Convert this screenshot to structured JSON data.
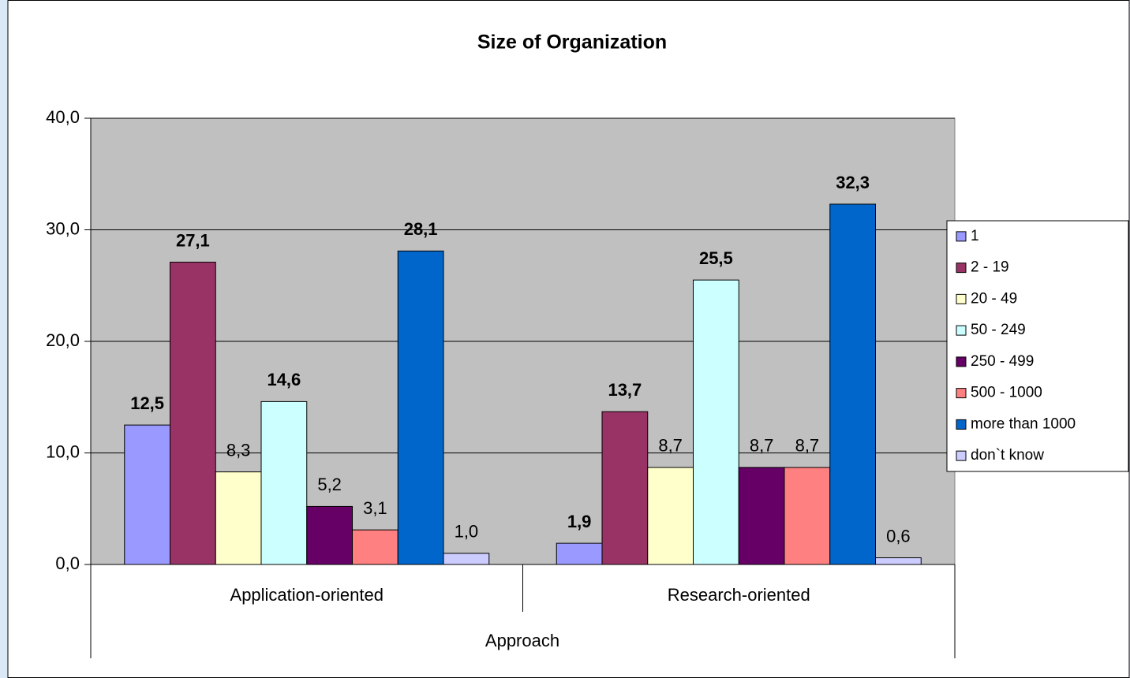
{
  "chart_data": {
    "type": "bar",
    "title": "Size of Organization",
    "x_label": "Approach",
    "categories": [
      "Application-oriented",
      "Research-oriented"
    ],
    "series": [
      {
        "name": "1",
        "color": "#9999ff",
        "values": [
          12.5,
          1.9
        ],
        "value_labels": [
          "12,5",
          "1,9"
        ],
        "label_bold": [
          true,
          true
        ]
      },
      {
        "name": "2 - 19",
        "color": "#993366",
        "values": [
          27.1,
          13.7
        ],
        "value_labels": [
          "27,1",
          "13,7"
        ],
        "label_bold": [
          true,
          true
        ]
      },
      {
        "name": "20 - 49",
        "color": "#ffffcc",
        "values": [
          8.3,
          8.7
        ],
        "value_labels": [
          "8,3",
          "8,7"
        ],
        "label_bold": [
          false,
          false
        ]
      },
      {
        "name": "50 - 249",
        "color": "#ccffff",
        "values": [
          14.6,
          25.5
        ],
        "value_labels": [
          "14,6",
          "25,5"
        ],
        "label_bold": [
          true,
          true
        ]
      },
      {
        "name": "250 - 499",
        "color": "#660066",
        "values": [
          5.2,
          8.7
        ],
        "value_labels": [
          "5,2",
          "8,7"
        ],
        "label_bold": [
          false,
          false
        ]
      },
      {
        "name": "500 - 1000",
        "color": "#ff8080",
        "values": [
          3.1,
          8.7
        ],
        "value_labels": [
          "3,1",
          "8,7"
        ],
        "label_bold": [
          false,
          false
        ]
      },
      {
        "name": "more than 1000",
        "color": "#0066cc",
        "values": [
          28.1,
          32.3
        ],
        "value_labels": [
          "28,1",
          "32,3"
        ],
        "label_bold": [
          true,
          true
        ]
      },
      {
        "name": "don`t know",
        "color": "#ccccff",
        "values": [
          1.0,
          0.6
        ],
        "value_labels": [
          "1,0",
          "0,6"
        ],
        "label_bold": [
          false,
          false
        ]
      }
    ],
    "ylim": [
      0,
      40
    ],
    "yticks": [
      {
        "value": 0,
        "label": "0,0"
      },
      {
        "value": 10,
        "label": "10,0"
      },
      {
        "value": 20,
        "label": "20,0"
      },
      {
        "value": 30,
        "label": "30,0"
      },
      {
        "value": 40,
        "label": "40,0"
      }
    ],
    "grid": true,
    "plot_background": "#c0c0c0",
    "legend": "right"
  }
}
